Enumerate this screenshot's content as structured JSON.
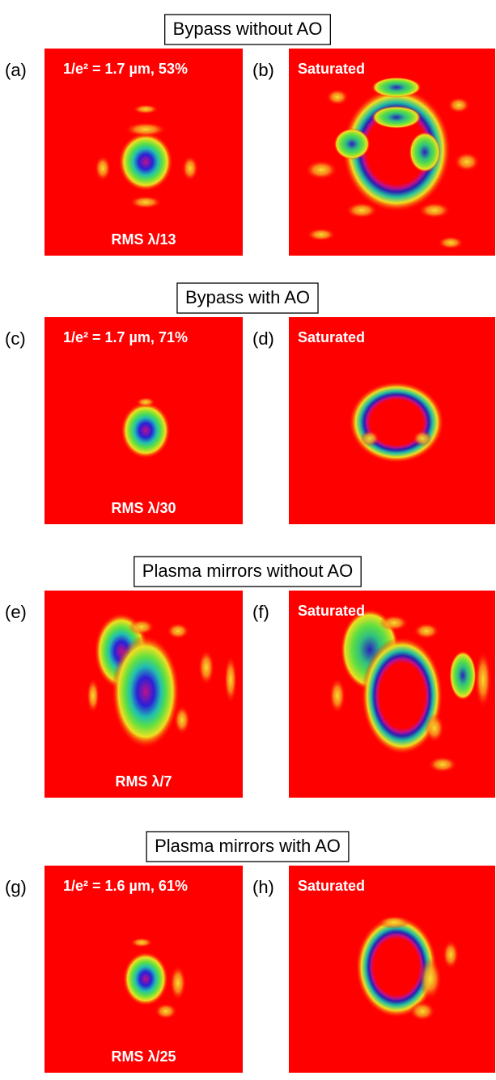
{
  "sections": [
    {
      "title": "Bypass without AO",
      "panels": [
        {
          "label": "(a)",
          "top_text": "1/e² = 1.7 µm, 53%",
          "bottom_text": "RMS λ/13"
        },
        {
          "label": "(b)",
          "top_text": "Saturated"
        }
      ]
    },
    {
      "title": "Bypass with AO",
      "panels": [
        {
          "label": "(c)",
          "top_text": "1/e² = 1.7 µm, 71%",
          "bottom_text": "RMS λ/30"
        },
        {
          "label": "(d)",
          "top_text": "Saturated"
        }
      ]
    },
    {
      "title": "Plasma mirrors without AO",
      "panels": [
        {
          "label": "(e)",
          "bottom_text": "RMS λ/7"
        },
        {
          "label": "(f)",
          "top_text": "Saturated"
        }
      ]
    },
    {
      "title": "Plasma mirrors with AO",
      "panels": [
        {
          "label": "(g)",
          "top_text": "1/e² = 1.6 µm, 61%",
          "bottom_text": "RMS λ/25"
        },
        {
          "label": "(h)",
          "top_text": "Saturated"
        }
      ]
    }
  ]
}
